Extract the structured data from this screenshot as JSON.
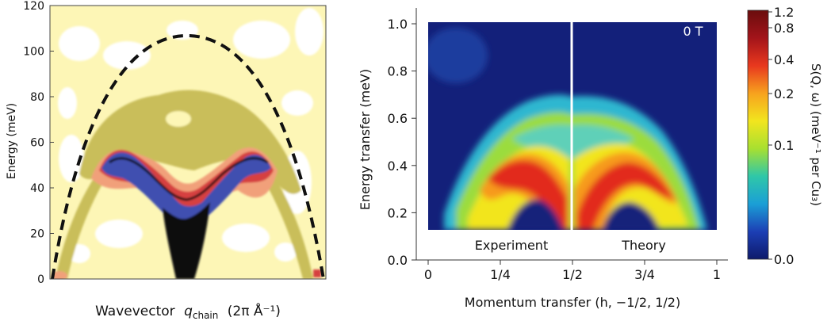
{
  "chart_data": [
    {
      "type": "heatmap",
      "panel": "left",
      "xlabel_main": "Wavevector",
      "xlabel_var": "q",
      "xlabel_sub": "chain",
      "xlabel_unit": "(2π Å⁻¹)",
      "ylabel": "Energy (meV)",
      "ylim": [
        0,
        120
      ],
      "yticks": [
        "0",
        "20",
        "40",
        "60",
        "80",
        "100",
        "120"
      ],
      "xlim": [
        0,
        1
      ],
      "grid": false,
      "dispersion_peak_meV": 105,
      "band_center_meV": [
        5,
        56
      ],
      "colors": {
        "background": "#fdf6b6",
        "white_patch": "#ffffff",
        "olive": "#c9be5a",
        "salmon": "#f1a07a",
        "red": "#d64040",
        "blue": "#3f4fb0",
        "black": "#111111"
      }
    },
    {
      "type": "heatmap",
      "panel": "right",
      "xlabel": "Momentum transfer (h, −1/2, 1/2)",
      "ylabel": "Energy transfer (meV)",
      "xlim": [
        0,
        1
      ],
      "ylim": [
        0,
        1.05
      ],
      "xticks": [
        "0",
        "1/4",
        "1/2",
        "3/4",
        "1"
      ],
      "yticks": [
        "0.0",
        "0.2",
        "0.4",
        "0.6",
        "0.8",
        "1.0"
      ],
      "annotations": {
        "field": "0 T",
        "left_label": "Experiment",
        "right_label": "Theory"
      },
      "colorbar": {
        "label": "S(Q, ω) (meV⁻¹ per Cu₃)",
        "ticks": [
          "1.2",
          "0.8",
          "0.4",
          "0.2",
          "0.1",
          "0.0"
        ],
        "colors": [
          "#0e1a6b",
          "#1c3fb5",
          "#1b9fd6",
          "#2fc7a8",
          "#a8e030",
          "#f2e51e",
          "#f7a21e",
          "#e8381e",
          "#a3141a",
          "#6a0d0d"
        ]
      },
      "dispersion": {
        "lower_min_meV": 0.2,
        "lower_max_meV": 0.43,
        "upper_max_meV": 0.68,
        "q_peak": [
          0.25,
          0.75
        ]
      }
    }
  ]
}
